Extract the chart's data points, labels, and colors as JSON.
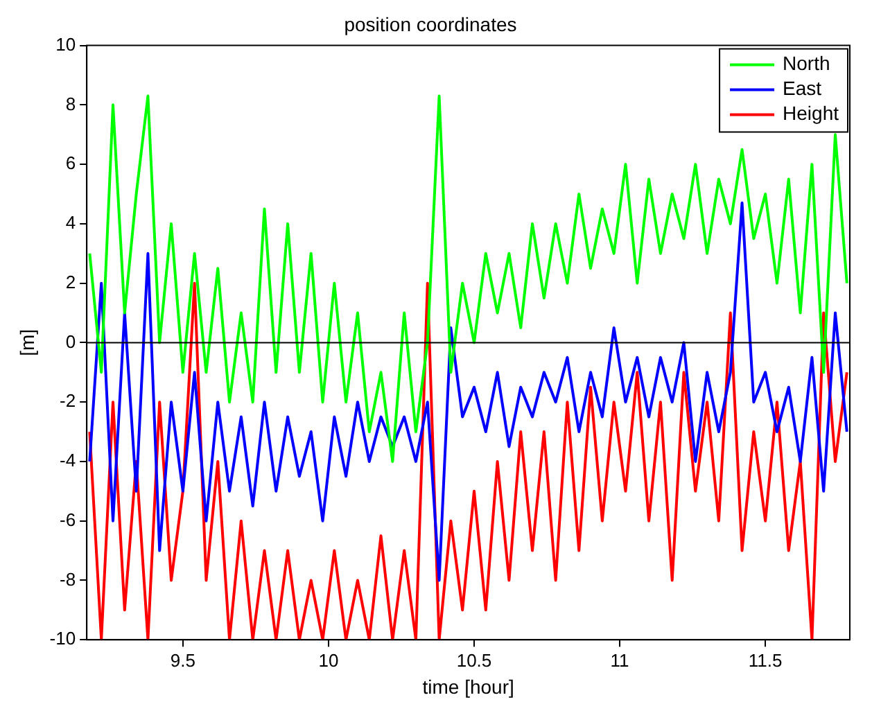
{
  "chart_data": {
    "type": "line",
    "title": "position coordinates",
    "xlabel": "time [hour]",
    "ylabel": "[m]",
    "x": [
      9.18,
      9.22,
      9.26,
      9.3,
      9.34,
      9.38,
      9.42,
      9.46,
      9.5,
      9.54,
      9.58,
      9.62,
      9.66,
      9.7,
      9.74,
      9.78,
      9.82,
      9.86,
      9.9,
      9.94,
      9.98,
      10.02,
      10.06,
      10.1,
      10.14,
      10.18,
      10.22,
      10.26,
      10.3,
      10.34,
      10.38,
      10.42,
      10.46,
      10.5,
      10.54,
      10.58,
      10.62,
      10.66,
      10.7,
      10.74,
      10.78,
      10.82,
      10.86,
      10.9,
      10.94,
      10.98,
      11.02,
      11.06,
      11.1,
      11.14,
      11.18,
      11.22,
      11.26,
      11.3,
      11.34,
      11.38,
      11.42,
      11.46,
      11.5,
      11.54,
      11.58,
      11.62,
      11.66,
      11.7,
      11.74,
      11.78
    ],
    "series": [
      {
        "name": "North",
        "color": "#00ff00",
        "values": [
          3,
          -1,
          8,
          1,
          5,
          8.3,
          0,
          4,
          -1,
          3,
          -1,
          2.5,
          -2,
          1,
          -2,
          4.5,
          -1,
          4,
          -1,
          3,
          -2,
          2,
          -2,
          1,
          -3,
          -1,
          -4,
          1,
          -3,
          0,
          8.3,
          -1,
          2,
          0,
          3,
          1,
          3,
          0.5,
          4,
          1.5,
          4,
          2,
          5,
          2.5,
          4.5,
          3,
          6,
          2,
          5.5,
          3,
          5,
          3.5,
          6,
          3,
          5.5,
          4,
          6.5,
          3.5,
          5,
          2,
          5.5,
          1,
          6,
          -1,
          7,
          2
        ]
      },
      {
        "name": "East",
        "color": "#0000ff",
        "values": [
          -4,
          2,
          -6,
          1,
          -5,
          3,
          -7,
          -2,
          -5,
          -1,
          -6,
          -2,
          -5,
          -2.5,
          -5.5,
          -2,
          -5,
          -2.5,
          -4.5,
          -3,
          -6,
          -2.5,
          -4.5,
          -2,
          -4,
          -2.5,
          -3.5,
          -2.5,
          -4,
          -2,
          -8,
          0.5,
          -2.5,
          -1.5,
          -3,
          -1,
          -3.5,
          -1.5,
          -2.5,
          -1,
          -2,
          -0.5,
          -3,
          -1,
          -2.5,
          0.5,
          -2,
          -0.5,
          -2.5,
          -0.5,
          -2,
          0,
          -4,
          -1,
          -3,
          -1,
          4.7,
          -2,
          -1,
          -3,
          -1.5,
          -4,
          -0.5,
          -5,
          1,
          -3
        ]
      },
      {
        "name": "Height",
        "color": "#ff0000",
        "values": [
          -3,
          -10,
          -2,
          -9,
          -4,
          -10,
          -2,
          -8,
          -5,
          2,
          -8,
          -4,
          -10,
          -6,
          -10,
          -7,
          -10,
          -7,
          -10,
          -8,
          -10,
          -7,
          -10,
          -8,
          -10,
          -6.5,
          -10,
          -7,
          -10,
          2,
          -10,
          -6,
          -9,
          -5,
          -9,
          -4,
          -8,
          -3,
          -7,
          -3,
          -8,
          -2,
          -7,
          -1.5,
          -6,
          -2,
          -5,
          -1,
          -6,
          -2,
          -8,
          -1,
          -5,
          -2,
          -6,
          1,
          -7,
          -3,
          -6,
          -2,
          -7,
          -4,
          -10,
          1,
          -4,
          -1
        ]
      }
    ],
    "xlim": [
      9.17,
      11.79
    ],
    "xticks": [
      9.5,
      10,
      10.5,
      11,
      11.5
    ],
    "ylim": [
      -10,
      10
    ],
    "yticks": [
      -10,
      -8,
      -6,
      -4,
      -2,
      0,
      2,
      4,
      6,
      8,
      10
    ],
    "ref_lines": [
      {
        "axis": "y",
        "value": 0,
        "color": "#000000"
      }
    ],
    "grid": false,
    "legend": "top right",
    "marker": "none",
    "line_style": "solid"
  }
}
